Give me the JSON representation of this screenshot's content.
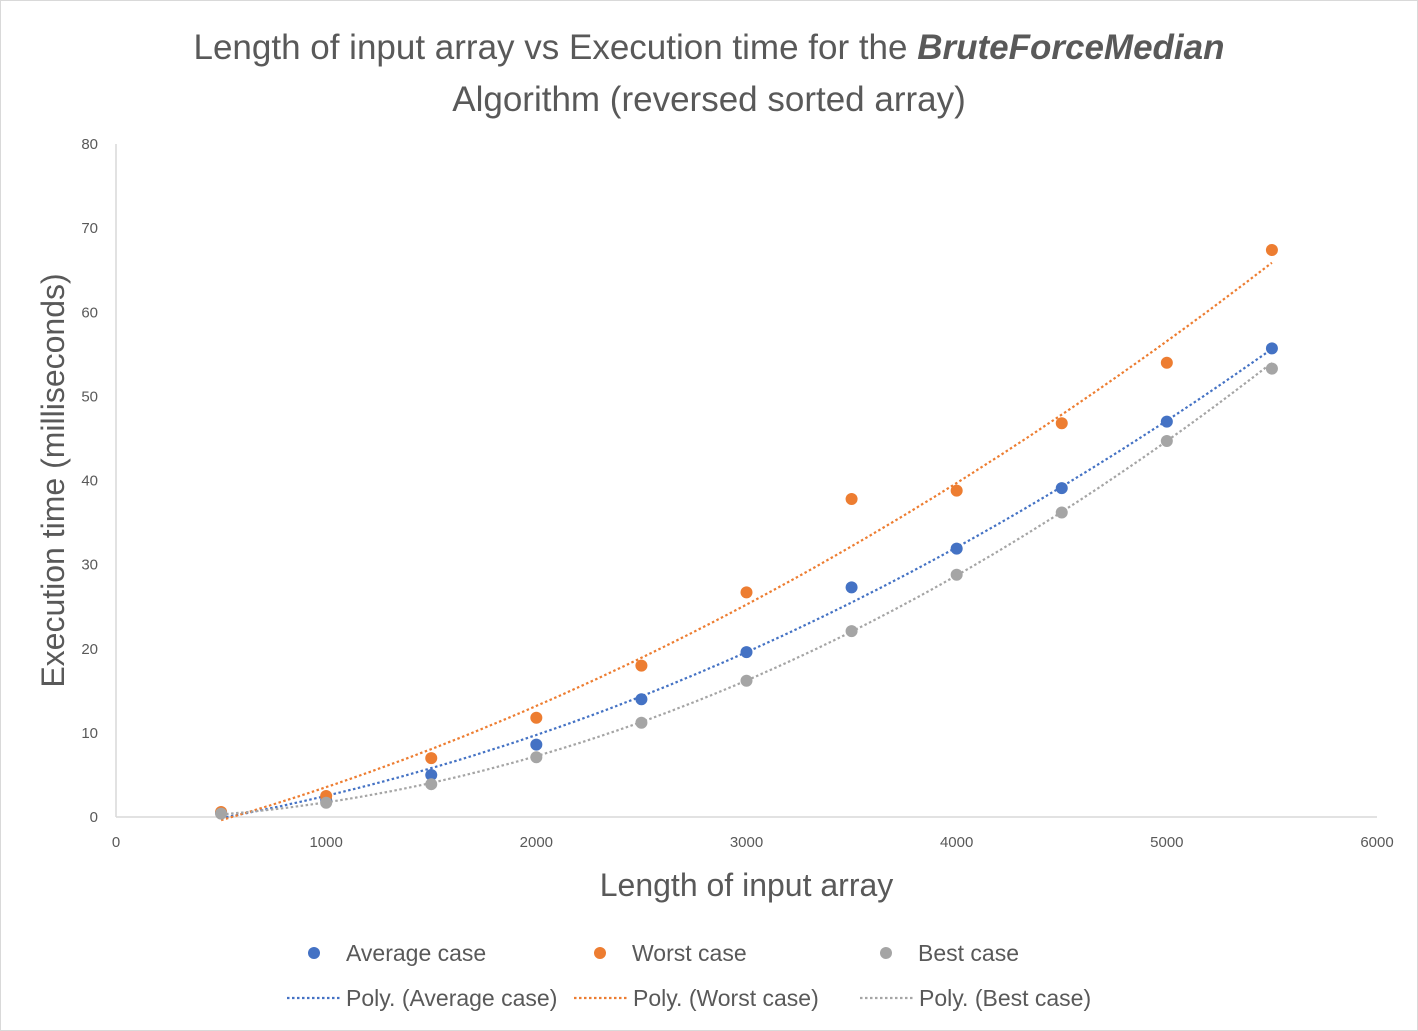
{
  "chart_data": {
    "type": "scatter",
    "title": {
      "line1_prefix": "Length of input array vs Execution time for the ",
      "line1_emphasis": "BruteForceMedian",
      "line2": "Algorithm (reversed sorted array)"
    },
    "xlabel": "Length of input array",
    "ylabel": "Execution time (milliseconds)",
    "xlim": [
      0,
      6000
    ],
    "ylim": [
      0,
      80
    ],
    "x_ticks": [
      0,
      1000,
      2000,
      3000,
      4000,
      5000,
      6000
    ],
    "y_ticks": [
      0,
      10,
      20,
      30,
      40,
      50,
      60,
      70,
      80
    ],
    "grid": false,
    "legend_position": "bottom",
    "x": [
      500,
      1000,
      1500,
      2000,
      2500,
      3000,
      3500,
      4000,
      4500,
      5000,
      5500
    ],
    "series": [
      {
        "name": "Average case",
        "color": "#4472c4",
        "values": [
          0.5,
          2.0,
          5.0,
          8.6,
          14.0,
          19.6,
          27.3,
          31.9,
          39.1,
          47.0,
          55.7
        ]
      },
      {
        "name": "Worst case",
        "color": "#ed7d31",
        "values": [
          0.6,
          2.5,
          7.0,
          11.8,
          18.0,
          26.7,
          37.8,
          38.8,
          46.8,
          54.0,
          67.4
        ]
      },
      {
        "name": "Best case",
        "color": "#a5a5a5",
        "values": [
          0.4,
          1.7,
          3.9,
          7.1,
          11.2,
          16.2,
          22.1,
          28.8,
          36.2,
          44.7,
          53.3
        ]
      }
    ],
    "trendlines": [
      {
        "name": "Poly. (Average case)",
        "type": "polynomial",
        "order": 2,
        "color": "#4472c4",
        "style": "dotted",
        "fit": [
          0.3,
          2.1,
          5.4,
          9.6,
          14.7,
          20.3,
          25.4,
          31.8,
          39.0,
          47.1,
          55.8
        ]
      },
      {
        "name": "Poly. (Worst case)",
        "type": "polynomial",
        "order": 2,
        "color": "#ed7d31",
        "style": "dotted",
        "fit": [
          0.4,
          2.9,
          7.5,
          13.1,
          19.0,
          25.6,
          32.6,
          39.6,
          47.8,
          56.5,
          65.8
        ]
      },
      {
        "name": "Poly. (Best case)",
        "type": "polynomial",
        "order": 2,
        "color": "#a5a5a5",
        "style": "dotted",
        "fit": [
          0.3,
          1.7,
          4.1,
          7.3,
          11.3,
          16.2,
          22.0,
          28.7,
          36.3,
          44.7,
          54.0
        ]
      }
    ]
  }
}
